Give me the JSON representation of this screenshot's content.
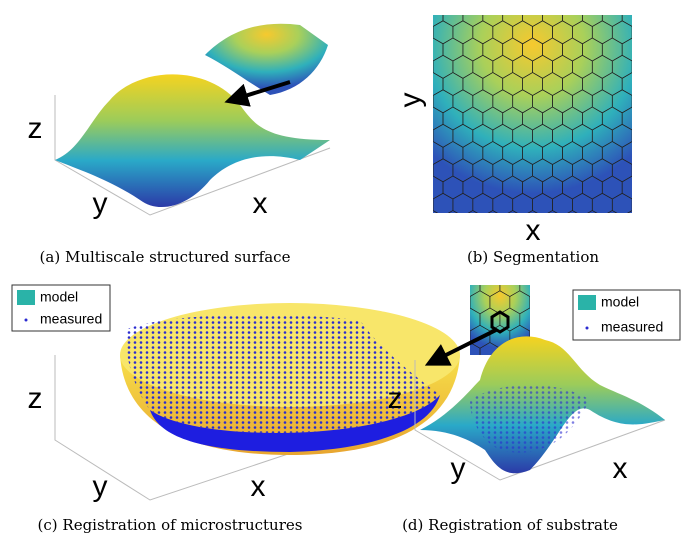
{
  "panels": [
    {
      "caption": "(a) Multiscale structured surface",
      "axes": {
        "x": "x",
        "y": "y",
        "z": "z"
      }
    },
    {
      "caption": "(b) Segmentation",
      "axes": {
        "x": "x",
        "y": "y"
      }
    },
    {
      "caption": "(c) Registration of microstructures",
      "axes": {
        "x": "x",
        "y": "y",
        "z": "z"
      },
      "legend": [
        "model",
        "measured"
      ]
    },
    {
      "caption": "(d) Registration of substrate",
      "axes": {
        "x": "x",
        "y": "y",
        "z": "z"
      },
      "legend": [
        "model",
        "measured"
      ]
    }
  ]
}
